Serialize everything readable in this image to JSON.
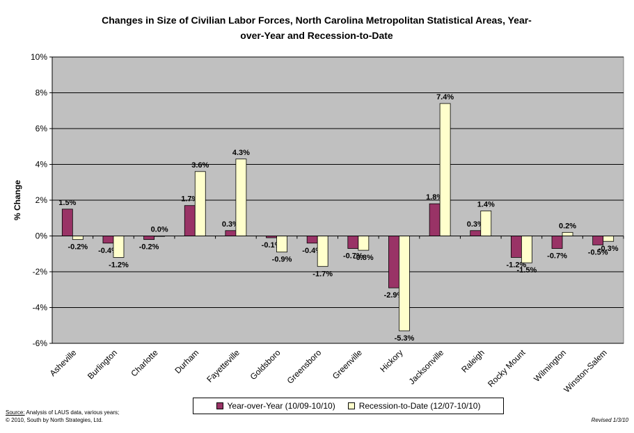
{
  "title_line1": "Changes in Size of Civilian Labor Forces, North Carolina Metropolitan Statistical Areas, Year-",
  "title_line2": "over-Year and Recession-to-Date",
  "source_label": "Source:",
  "source_text": " Analysis of LAUS data, various years;",
  "copyright": "© 2010, South by North Strategies, Ltd.",
  "revised": "Revised 1/3/10",
  "colors": {
    "yoy": "#993366",
    "rtd": "#FFFFCC",
    "plot_bg": "#C0C0C0"
  },
  "chart_data": {
    "type": "bar",
    "title": "Changes in Size of Civilian Labor Forces, North Carolina Metropolitan Statistical Areas, Year-over-Year and Recession-to-Date",
    "ylabel": "% Change",
    "xlabel": "",
    "ylim": [
      -6,
      10
    ],
    "yticks": [
      -6,
      -4,
      -2,
      0,
      2,
      4,
      6,
      8,
      10
    ],
    "grid": true,
    "legend": "bottom",
    "categories": [
      "Asheville",
      "Burlington",
      "Charlotte",
      "Durham",
      "Fayetteville",
      "Goldsboro",
      "Greensboro",
      "Greenville",
      "Hickory",
      "Jacksonville",
      "Raleigh",
      "Rocky Mount",
      "Wilmington",
      "Winston-Salem"
    ],
    "series": [
      {
        "name": "Year-over-Year (10/09-10/10)",
        "values": [
          1.5,
          -0.4,
          -0.2,
          1.7,
          0.3,
          -0.1,
          -0.4,
          -0.7,
          -2.9,
          1.8,
          0.3,
          -1.2,
          -0.7,
          -0.5
        ]
      },
      {
        "name": "Recession-to-Date (12/07-10/10)",
        "values": [
          -0.2,
          -1.2,
          0.0,
          3.6,
          4.3,
          -0.9,
          -1.7,
          -0.8,
          -5.3,
          7.4,
          1.4,
          -1.5,
          0.2,
          -0.3
        ]
      }
    ]
  }
}
